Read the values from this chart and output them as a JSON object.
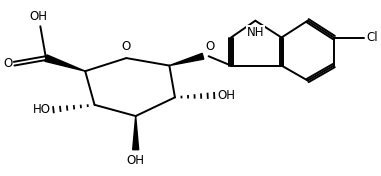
{
  "background": "#ffffff",
  "line_color": "#000000",
  "line_width": 1.4,
  "figsize": [
    3.81,
    1.76
  ],
  "dpi": 100,
  "xlim": [
    0,
    10
  ],
  "ylim": [
    0,
    4.6
  ]
}
